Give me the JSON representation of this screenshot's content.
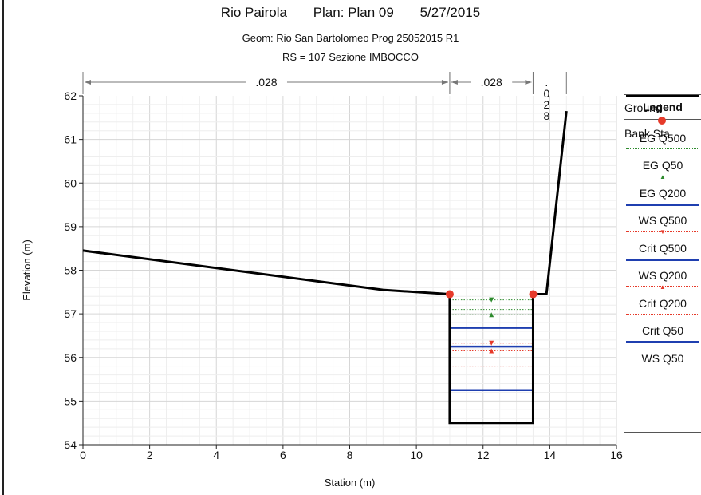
{
  "header": {
    "river": "Rio Pairola",
    "plan": "Plan: Plan 09",
    "date": "5/27/2015",
    "geom": "Geom: Rio San Bartolomeo Prog  25052015 R1",
    "rs": "RS = 107  Sezione IMBOCCO"
  },
  "legend": {
    "title": "Legend",
    "items": [
      {
        "label": "EG Q500",
        "color": "#2e8b2e",
        "style": "dotted",
        "marker": "▼"
      },
      {
        "label": "EG Q50",
        "color": "#2e8b2e",
        "style": "dotted",
        "marker": ""
      },
      {
        "label": "EG Q200",
        "color": "#2e8b2e",
        "style": "dotted",
        "marker": "▲"
      },
      {
        "label": "WS Q500",
        "color": "#1f3fb0",
        "style": "solid",
        "marker": ""
      },
      {
        "label": "Crit Q500",
        "color": "#e63a2a",
        "style": "dotted",
        "marker": "▼"
      },
      {
        "label": "WS Q200",
        "color": "#1f3fb0",
        "style": "solid",
        "marker": ""
      },
      {
        "label": "Crit Q200",
        "color": "#e63a2a",
        "style": "dotted",
        "marker": "▲"
      },
      {
        "label": "Crit Q50",
        "color": "#e63a2a",
        "style": "dotted",
        "marker": ""
      },
      {
        "label": "WS Q50",
        "color": "#1f3fb0",
        "style": "solid",
        "marker": ""
      }
    ],
    "ground": "Ground",
    "bank": "Bank Sta"
  },
  "chart_data": {
    "type": "line",
    "xlabel": "Station (m)",
    "ylabel": "Elevation (m)",
    "xlim": [
      0,
      16
    ],
    "ylim": [
      54,
      62
    ],
    "xticks": [
      0,
      2,
      4,
      6,
      8,
      10,
      12,
      14,
      16
    ],
    "yticks": [
      54,
      55,
      56,
      57,
      58,
      59,
      60,
      61,
      62
    ],
    "grid": true,
    "legend_position": "right",
    "manning": [
      {
        "label": ".028",
        "from": 0,
        "to": 11
      },
      {
        "label": ".028",
        "from": 11,
        "to": 13.5
      },
      {
        "label": ". 0 2 8",
        "from": 13.5,
        "to": 14.5
      }
    ],
    "ground": {
      "color": "#000000",
      "x": [
        0,
        9,
        11,
        11,
        13.5,
        13.5,
        13.9,
        14.5
      ],
      "y": [
        58.45,
        57.55,
        57.45,
        54.5,
        54.5,
        57.45,
        57.45,
        61.65
      ]
    },
    "bank_stations": {
      "color": "#e63a2a",
      "x": [
        11,
        13.5
      ],
      "y": [
        57.45,
        57.45
      ]
    },
    "water_levels": [
      {
        "name": "EG Q500",
        "y": 57.32,
        "color": "#2e8b2e",
        "style": "dotted",
        "marker": "down"
      },
      {
        "name": "EG Q50",
        "y": 57.1,
        "color": "#2e8b2e",
        "style": "dotted",
        "marker": "none"
      },
      {
        "name": "EG Q200",
        "y": 56.98,
        "color": "#2e8b2e",
        "style": "dotted",
        "marker": "up"
      },
      {
        "name": "WS Q500",
        "y": 56.68,
        "color": "#1f3fb0",
        "style": "solid",
        "marker": "none"
      },
      {
        "name": "Crit Q500",
        "y": 56.33,
        "color": "#e63a2a",
        "style": "dotted",
        "marker": "down"
      },
      {
        "name": "WS Q200",
        "y": 56.25,
        "color": "#1f3fb0",
        "style": "solid",
        "marker": "none"
      },
      {
        "name": "Crit Q200",
        "y": 56.15,
        "color": "#e63a2a",
        "style": "dotted",
        "marker": "up"
      },
      {
        "name": "Crit Q50",
        "y": 55.8,
        "color": "#e63a2a",
        "style": "dotted",
        "marker": "none"
      },
      {
        "name": "WS Q50",
        "y": 55.25,
        "color": "#1f3fb0",
        "style": "solid",
        "marker": "none"
      }
    ]
  }
}
